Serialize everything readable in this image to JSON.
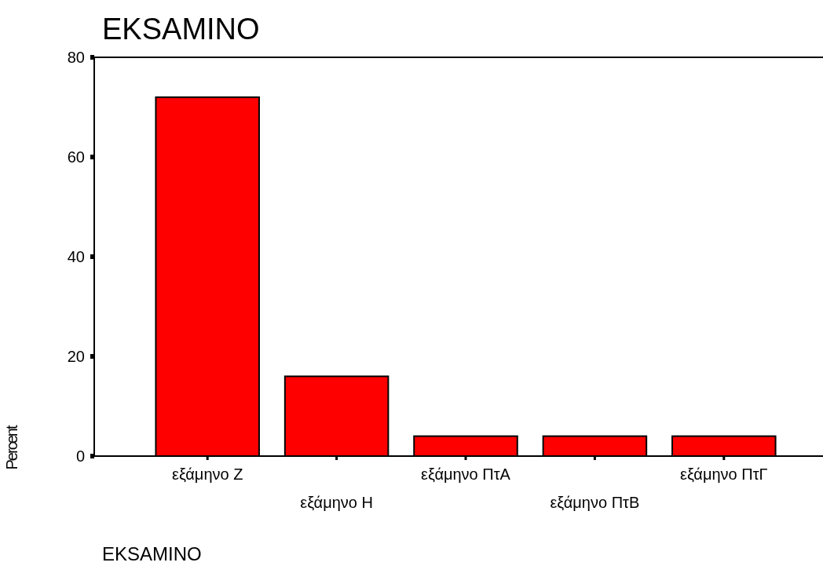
{
  "chart_data": {
    "type": "bar",
    "title": "EKSAMINO",
    "xlabel": "EKSAMINO",
    "ylabel": "Percent",
    "categories": [
      "εξάμηνο Ζ",
      "εξάμηνο Η",
      "εξάμηνο ΠτΑ",
      "εξάμηνο ΠτΒ",
      "εξάμηνο ΠτΓ"
    ],
    "values": [
      72,
      16,
      4,
      4,
      4
    ],
    "color": "#ff0000",
    "ylim": [
      0,
      80
    ],
    "yticks": [
      0,
      20,
      40,
      60,
      80
    ],
    "grid": false
  }
}
